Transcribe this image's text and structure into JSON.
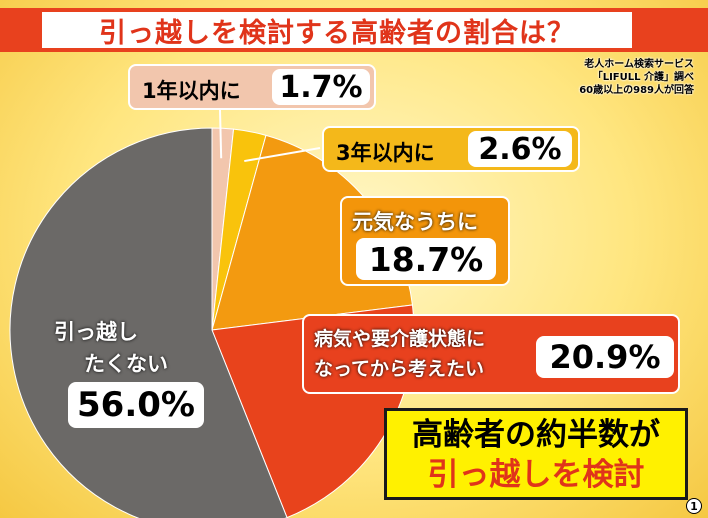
{
  "title": "引っ越しを検討する高齢者の割合は？",
  "source": {
    "line1": "老人ホーム検索サービス",
    "line2": "「LIFULL 介護」調べ",
    "line3": "60歳以上の989人が回答"
  },
  "chart_data": {
    "type": "pie",
    "slices": [
      {
        "label": "1年以内に",
        "value": 1.7,
        "value_text": "1.7%",
        "color": "#f2c6ad"
      },
      {
        "label": "3年以内に",
        "value": 2.6,
        "value_text": "2.6%",
        "color": "#f9c30c"
      },
      {
        "label": "元気なうちに",
        "value": 18.7,
        "value_text": "18.7%",
        "color": "#f39a10"
      },
      {
        "label_line1": "病気や要介護状態に",
        "label_line2": "なってから考えたい",
        "value": 20.9,
        "value_text": "20.9%",
        "color": "#e8431c"
      },
      {
        "label_line1": "引っ越し",
        "label_line2": "たくない",
        "value": 56.0,
        "value_text": "56.0%",
        "color": "#6b6967"
      }
    ]
  },
  "callout": {
    "line1": "高齢者の約半数が",
    "line2": "引っ越しを検討"
  },
  "page_badge": "1"
}
